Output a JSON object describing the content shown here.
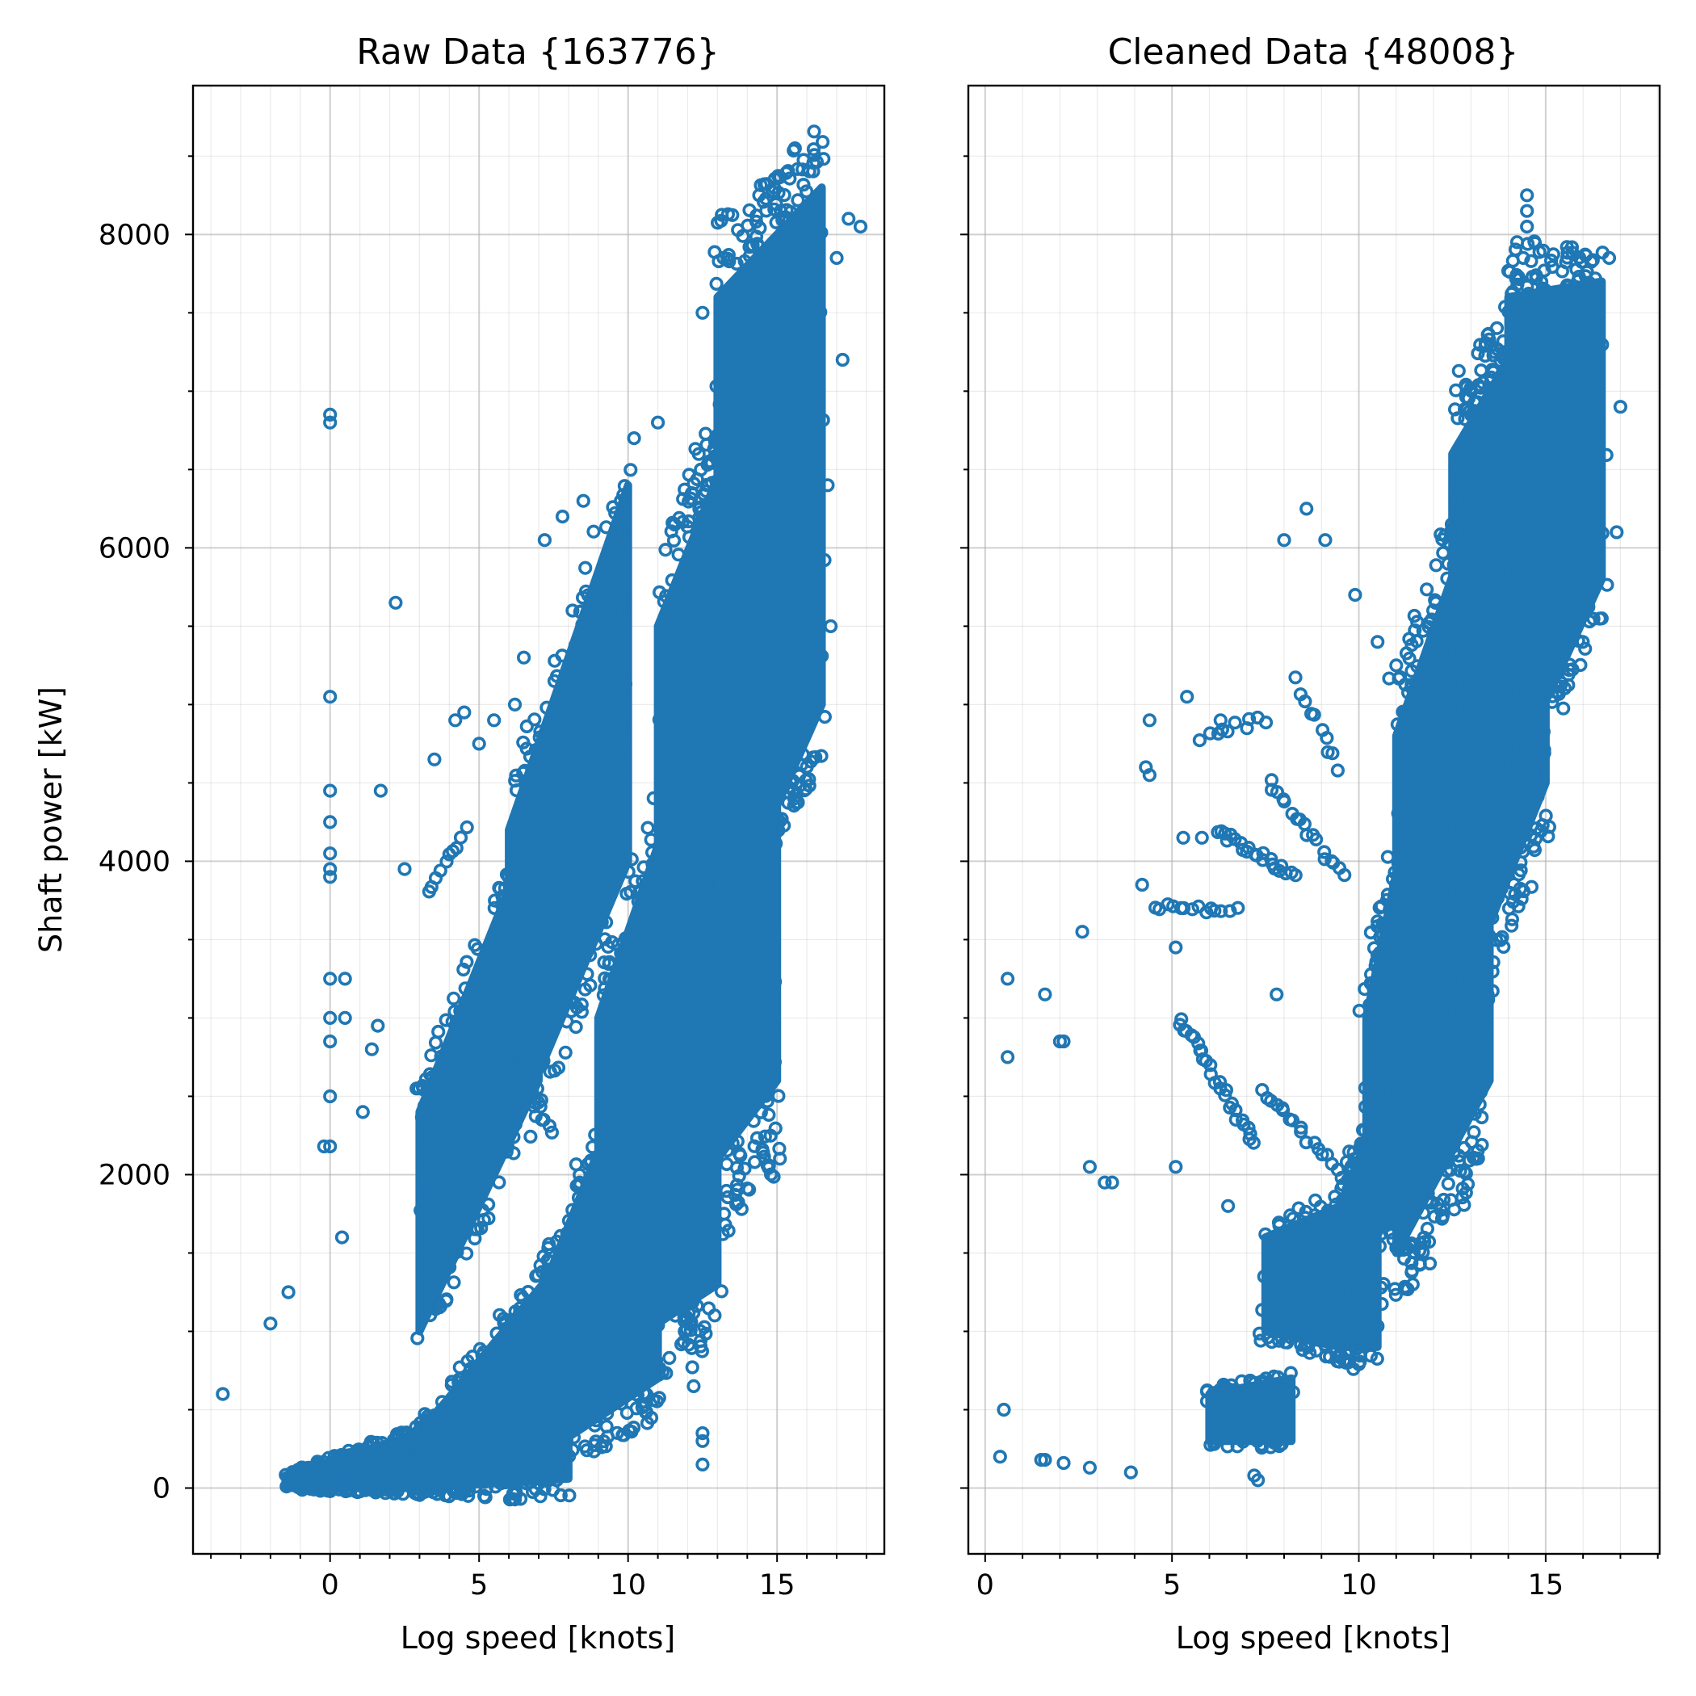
{
  "colors": {
    "marker": "#1f77b4",
    "grid": "#b0b0b0",
    "axes": "#000000"
  },
  "chart_data": [
    {
      "type": "scatter",
      "title": "Raw Data {163776}",
      "xlabel": "Log speed [knots]",
      "ylabel": "Shaft power [kW]",
      "xlim": [
        -4.6,
        18.6
      ],
      "ylim": [
        -420,
        8950
      ],
      "xticks": [
        0,
        5,
        10,
        15
      ],
      "xtick_labels": [
        "0",
        "5",
        "10",
        "15"
      ],
      "yticks": [
        0,
        2000,
        4000,
        6000,
        8000
      ],
      "ytick_labels": [
        "0",
        "2000",
        "4000",
        "6000",
        "8000"
      ],
      "x_minor_step": 1,
      "y_minor_step": 500,
      "grid": true,
      "marker": "hollow-circle",
      "points_shown_approx": 163776,
      "bands": [
        {
          "x0": -1.5,
          "x1": 3,
          "ylo0": 0,
          "yhi0": 80,
          "ylo1": 0,
          "yhi1": 350,
          "n": 180
        },
        {
          "x0": 3,
          "x1": 8,
          "ylo0": 0,
          "yhi0": 350,
          "ylo1": 60,
          "yhi1": 1500,
          "n": 200
        },
        {
          "x0": 7,
          "x1": 11,
          "ylo0": 200,
          "yhi0": 1200,
          "ylo1": 700,
          "yhi1": 3100,
          "n": 200
        },
        {
          "x0": 9,
          "x1": 13,
          "ylo0": 800,
          "yhi0": 3000,
          "ylo1": 1300,
          "yhi1": 5200,
          "n": 260
        },
        {
          "x0": 11,
          "x1": 15,
          "ylo0": 1600,
          "yhi0": 5500,
          "ylo1": 2600,
          "yhi1": 7400,
          "n": 340
        },
        {
          "x0": 13,
          "x1": 16.5,
          "ylo0": 3500,
          "yhi0": 7600,
          "ylo1": 5000,
          "yhi1": 8300,
          "n": 300
        },
        {
          "x0": 3,
          "x1": 7,
          "ylo0": 1000,
          "yhi0": 2400,
          "ylo1": 2600,
          "yhi1": 4300,
          "n": 140
        },
        {
          "x0": 6,
          "x1": 10,
          "ylo0": 2200,
          "yhi0": 4200,
          "ylo1": 4000,
          "yhi1": 6400,
          "n": 120
        }
      ],
      "outliers": [
        [
          -3.6,
          600
        ],
        [
          -2,
          1050
        ],
        [
          -1.4,
          1250
        ],
        [
          0,
          6850
        ],
        [
          0,
          6800
        ],
        [
          0,
          5050
        ],
        [
          0,
          4450
        ],
        [
          0,
          4250
        ],
        [
          0,
          4050
        ],
        [
          0,
          3950
        ],
        [
          0,
          3900
        ],
        [
          0,
          3250
        ],
        [
          0,
          3000
        ],
        [
          0,
          2850
        ],
        [
          0,
          2500
        ],
        [
          0,
          2180
        ],
        [
          -0.2,
          2180
        ],
        [
          0.5,
          3250
        ],
        [
          0.5,
          3000
        ],
        [
          2.2,
          5650
        ],
        [
          1.7,
          4450
        ],
        [
          3.5,
          4650
        ],
        [
          4.2,
          4900
        ],
        [
          4.5,
          4950
        ],
        [
          5,
          4750
        ],
        [
          5.5,
          4900
        ],
        [
          6.2,
          5000
        ],
        [
          6.5,
          5300
        ],
        [
          7.2,
          6050
        ],
        [
          7.8,
          6200
        ],
        [
          8.5,
          6300
        ],
        [
          10.2,
          6700
        ],
        [
          11,
          6800
        ],
        [
          12.5,
          7500
        ],
        [
          13.2,
          7850
        ],
        [
          14.4,
          8250
        ],
        [
          14.9,
          8300
        ],
        [
          15.6,
          8550
        ],
        [
          16.4,
          8000
        ],
        [
          17,
          7850
        ],
        [
          17.4,
          8100
        ],
        [
          17.8,
          8050
        ],
        [
          17.2,
          7200
        ],
        [
          16.7,
          6400
        ],
        [
          16.8,
          5500
        ],
        [
          12.2,
          650
        ],
        [
          12.5,
          350
        ],
        [
          12.5,
          300
        ],
        [
          12.5,
          150
        ],
        [
          11.9,
          1000
        ],
        [
          11.2,
          1650
        ],
        [
          1.6,
          2950
        ],
        [
          1.4,
          2800
        ],
        [
          1.1,
          2400
        ],
        [
          0.4,
          1600
        ],
        [
          2.9,
          2550
        ],
        [
          2.5,
          3950
        ],
        [
          7,
          200
        ],
        [
          6.5,
          150
        ],
        [
          7.6,
          50
        ]
      ],
      "streaks": [
        {
          "x0": 5.2,
          "y0": 3150,
          "x1": 7.4,
          "y1": 2250,
          "n": 24
        },
        {
          "x0": 6.5,
          "y0": 4350,
          "x1": 8.3,
          "y1": 3900,
          "n": 16
        },
        {
          "x0": 3.3,
          "y0": 3800,
          "x1": 4.6,
          "y1": 4200,
          "n": 10
        }
      ]
    },
    {
      "type": "scatter",
      "title": "Cleaned Data {48008}",
      "xlabel": "Log speed [knots]",
      "ylabel": "",
      "xlim": [
        -0.45,
        18.05
      ],
      "ylim": [
        -420,
        8950
      ],
      "xticks": [
        0,
        5,
        10,
        15
      ],
      "xtick_labels": [
        "0",
        "5",
        "10",
        "15"
      ],
      "yticks": [
        0,
        2000,
        4000,
        6000,
        8000
      ],
      "ytick_labels": [],
      "x_minor_step": 1,
      "y_minor_step": 500,
      "grid": true,
      "marker": "hollow-circle",
      "points_shown_approx": 48008,
      "bands": [
        {
          "x0": 10.2,
          "x1": 11.5,
          "ylo0": 1500,
          "yhi0": 3000,
          "ylo1": 2000,
          "yhi1": 4500,
          "n": 140
        },
        {
          "x0": 11,
          "x1": 13.5,
          "ylo0": 1500,
          "yhi0": 4800,
          "ylo1": 2600,
          "yhi1": 6500,
          "n": 280
        },
        {
          "x0": 12.5,
          "x1": 15,
          "ylo0": 3000,
          "yhi0": 6600,
          "ylo1": 4500,
          "yhi1": 7600,
          "n": 280
        },
        {
          "x0": 14,
          "x1": 16.5,
          "ylo0": 4500,
          "yhi0": 7600,
          "ylo1": 5800,
          "yhi1": 7700,
          "n": 180
        },
        {
          "x0": 9.5,
          "x1": 10.5,
          "ylo0": 900,
          "yhi0": 1800,
          "ylo1": 900,
          "yhi1": 2400,
          "n": 80
        },
        {
          "x0": 6,
          "x1": 8.2,
          "ylo0": 300,
          "yhi0": 600,
          "ylo1": 300,
          "yhi1": 700,
          "n": 70
        },
        {
          "x0": 7.5,
          "x1": 9.5,
          "ylo0": 1000,
          "yhi0": 1600,
          "ylo1": 900,
          "yhi1": 1800,
          "n": 60
        }
      ],
      "outliers": [
        [
          0.6,
          3250
        ],
        [
          0.6,
          2750
        ],
        [
          0.5,
          500
        ],
        [
          0.4,
          200
        ],
        [
          1.5,
          180
        ],
        [
          1.6,
          180
        ],
        [
          2.1,
          160
        ],
        [
          2.8,
          130
        ],
        [
          3.9,
          100
        ],
        [
          1.6,
          3150
        ],
        [
          2,
          2850
        ],
        [
          2.1,
          2850
        ],
        [
          2.8,
          2050
        ],
        [
          3.2,
          1950
        ],
        [
          3.4,
          1950
        ],
        [
          2.6,
          3550
        ],
        [
          4.2,
          3850
        ],
        [
          4.4,
          4900
        ],
        [
          4.3,
          4600
        ],
        [
          4.4,
          4550
        ],
        [
          5.4,
          5050
        ],
        [
          5.3,
          4150
        ],
        [
          5.8,
          4150
        ],
        [
          6.3,
          4900
        ],
        [
          8,
          6050
        ],
        [
          8.6,
          6250
        ],
        [
          9.1,
          6050
        ],
        [
          9.9,
          5700
        ],
        [
          10.5,
          5400
        ],
        [
          11,
          5250
        ],
        [
          14.5,
          8250
        ],
        [
          14.5,
          8150
        ],
        [
          14.5,
          8050
        ],
        [
          14.4,
          7850
        ],
        [
          16.7,
          7850
        ],
        [
          17,
          6900
        ],
        [
          16.9,
          6100
        ],
        [
          16.5,
          5550
        ],
        [
          7.3,
          50
        ],
        [
          7.2,
          80
        ],
        [
          5.1,
          3450
        ],
        [
          7.8,
          3150
        ],
        [
          6.5,
          1800
        ],
        [
          5.1,
          2050
        ]
      ],
      "streaks": [
        {
          "x0": 5.2,
          "y0": 3000,
          "x1": 7.2,
          "y1": 2200,
          "n": 28
        },
        {
          "x0": 7.4,
          "y0": 2550,
          "x1": 9.5,
          "y1": 2000,
          "n": 18
        },
        {
          "x0": 6.2,
          "y0": 4200,
          "x1": 8.3,
          "y1": 3900,
          "n": 22
        },
        {
          "x0": 7.6,
          "y0": 4500,
          "x1": 9.6,
          "y1": 3900,
          "n": 18
        },
        {
          "x0": 4.5,
          "y0": 3700,
          "x1": 6.7,
          "y1": 3700,
          "n": 14
        },
        {
          "x0": 5.8,
          "y0": 4800,
          "x1": 7.5,
          "y1": 4900,
          "n": 10
        },
        {
          "x0": 8.3,
          "y0": 5150,
          "x1": 9.5,
          "y1": 4600,
          "n": 10
        }
      ]
    }
  ]
}
